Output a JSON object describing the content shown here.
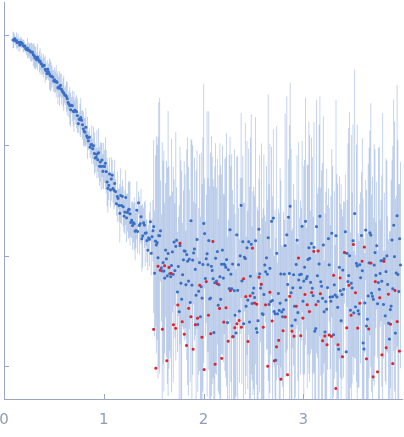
{
  "chart_data": {
    "type": "scatter",
    "title": "",
    "xlabel": "",
    "ylabel": "",
    "log_y": true,
    "xlim": [
      0,
      4.0
    ],
    "ylim": [
      0.0005,
      2.0
    ],
    "y_decades": [
      1,
      0.1,
      0.01,
      0.001
    ],
    "x_ticks": [
      0,
      1,
      2,
      3
    ],
    "x_tick_labels": [
      "0",
      "1",
      "2",
      "3"
    ],
    "grid": false,
    "legend": "none",
    "colors": {
      "axis": "#9aa6c2",
      "tick_label": "#8f9bb8",
      "included_points": "#3a6fc4",
      "excluded_points": "#e0242f",
      "error_bars": "#a9bfe4"
    },
    "series": [
      {
        "role": "included",
        "x": [
          0.1,
          0.2,
          0.3,
          0.4,
          0.5,
          0.6,
          0.7,
          0.8,
          0.9,
          1.0,
          1.1,
          1.2,
          1.3,
          1.4,
          1.5,
          1.6,
          1.8,
          2.0,
          2.2,
          2.4,
          2.6,
          2.8,
          3.0,
          3.2,
          3.4,
          3.6,
          3.8,
          3.95
        ],
        "y": [
          0.9,
          0.8,
          0.66,
          0.52,
          0.4,
          0.29,
          0.21,
          0.14,
          0.095,
          0.062,
          0.04,
          0.028,
          0.02,
          0.015,
          0.012,
          0.01,
          0.008,
          0.007,
          0.0065,
          0.006,
          0.006,
          0.0058,
          0.0057,
          0.0057,
          0.0057,
          0.0058,
          0.006,
          0.0065
        ],
        "spread_decades": [
          0.02,
          0.02,
          0.02,
          0.02,
          0.03,
          0.03,
          0.04,
          0.05,
          0.06,
          0.08,
          0.1,
          0.12,
          0.14,
          0.16,
          0.18,
          0.22,
          0.3,
          0.38,
          0.42,
          0.45,
          0.48,
          0.5,
          0.52,
          0.52,
          0.52,
          0.52,
          0.52,
          0.52
        ]
      },
      {
        "role": "excluded",
        "x": [
          1.5,
          2.0,
          2.4,
          2.8,
          3.2,
          3.6,
          3.95
        ],
        "y": [
          0.003,
          0.003,
          0.003,
          0.003,
          0.003,
          0.003,
          0.003
        ],
        "spread_decades": [
          0.55,
          0.55,
          0.55,
          0.55,
          0.55,
          0.55,
          0.55
        ]
      }
    ]
  }
}
